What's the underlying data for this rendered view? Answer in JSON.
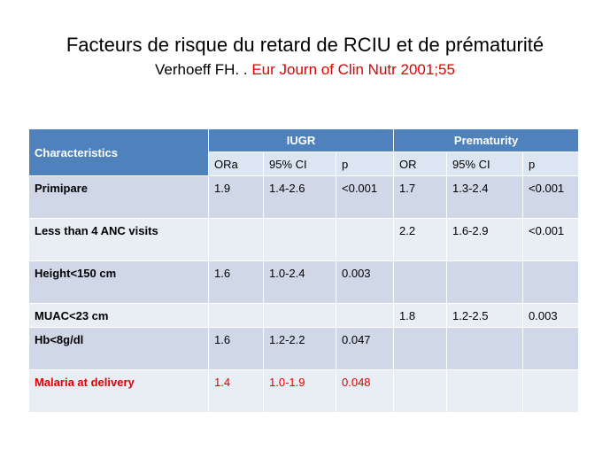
{
  "slide": {
    "title": "Facteurs de risque du retard de RCIU et de prématurité",
    "subtitle_author": "Verhoeff FH. . ",
    "subtitle_ref": "Eur Journ of Clin Nutr 2001;55"
  },
  "table": {
    "header": {
      "characteristics": "Characteristics",
      "group1": "IUGR",
      "group2": "Prematurity",
      "sub1": [
        "ORa",
        "95% CI",
        "p"
      ],
      "sub2": [
        "OR",
        "95% CI",
        "p"
      ]
    },
    "rows": [
      {
        "label": "Primipare",
        "iugr": [
          "1.9",
          "1.4-2.6",
          "<0.001"
        ],
        "prem": [
          "1.7",
          "1.3-2.4",
          "<0.001"
        ]
      },
      {
        "label": "Less than 4 ANC visits",
        "iugr": [
          "",
          "",
          ""
        ],
        "prem": [
          "2.2",
          "1.6-2.9",
          "<0.001"
        ]
      },
      {
        "label": "Height<150 cm",
        "iugr": [
          "1.6",
          "1.0-2.4",
          "0.003"
        ],
        "prem": [
          "",
          "",
          ""
        ]
      },
      {
        "label": "MUAC<23 cm",
        "iugr": [
          "",
          "",
          ""
        ],
        "prem": [
          "1.8",
          "1.2-2.5",
          "0.003"
        ]
      },
      {
        "label": "Hb<8g/dl",
        "iugr": [
          "1.6",
          "1.2-2.2",
          "0.047"
        ],
        "prem": [
          "",
          "",
          ""
        ]
      },
      {
        "label": "Malaria at delivery",
        "iugr": [
          "1.4",
          "1.0-1.9",
          "0.048"
        ],
        "prem": [
          "",
          "",
          ""
        ]
      }
    ],
    "colors": {
      "header": "#4f81bd",
      "subheader": "#dce6f2",
      "row_odd": "#d0d8e8",
      "row_even": "#e9edf4",
      "highlight_text": "#e00000"
    }
  }
}
